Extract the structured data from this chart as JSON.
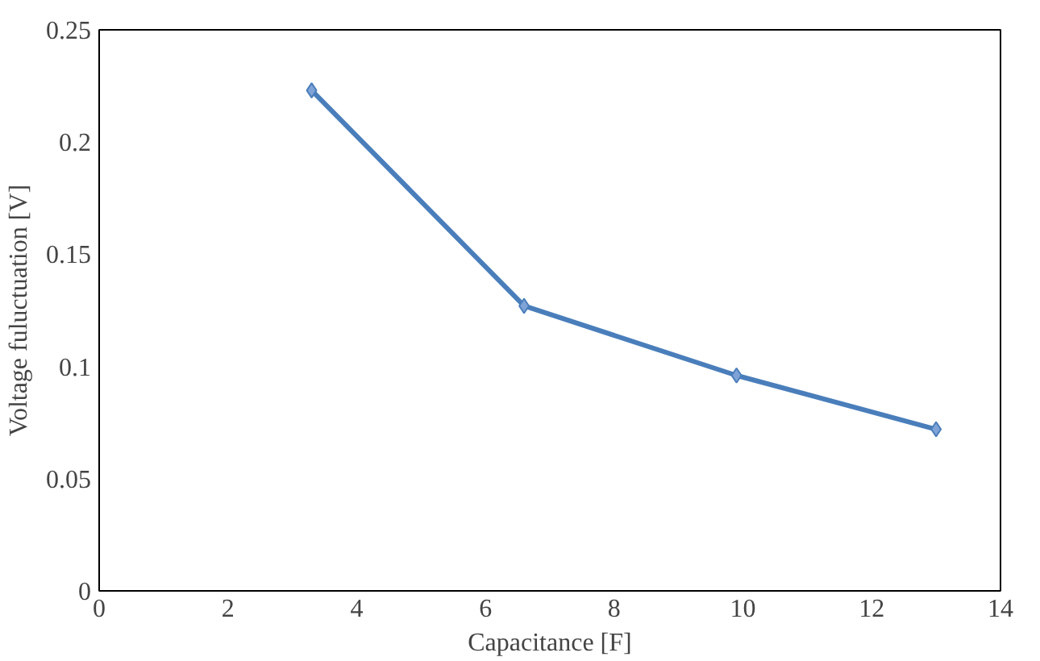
{
  "chart_data": {
    "type": "line",
    "xlabel": "Capacitance [F]",
    "ylabel": "Voltage fuluctuation [V]",
    "x": [
      3.3,
      6.6,
      9.9,
      13
    ],
    "series": [
      {
        "color": "#4a7ebb",
        "values": [
          0.223,
          0.127,
          0.096,
          0.072
        ]
      }
    ],
    "xlim": [
      0,
      14
    ],
    "xticks": [
      0,
      2,
      4,
      6,
      8,
      10,
      12,
      14
    ],
    "ylim": [
      0,
      0.25
    ],
    "yticks": [
      0,
      0.05,
      0.1,
      0.15,
      0.2,
      0.25
    ],
    "grid": false,
    "marker": "diamond",
    "line_style": "solid"
  }
}
